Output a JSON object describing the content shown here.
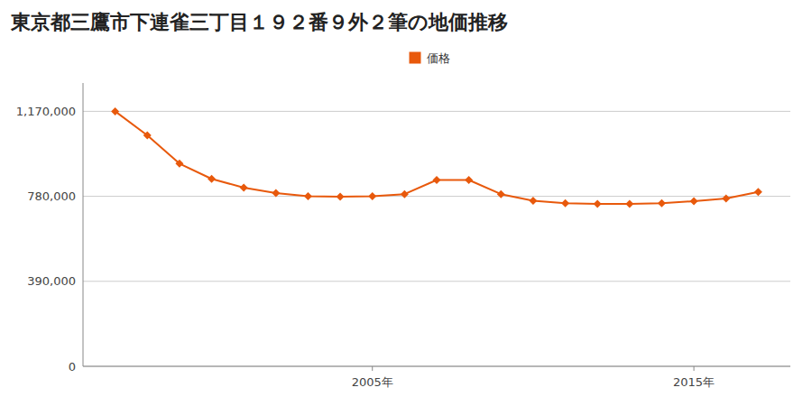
{
  "chart_data": {
    "type": "line",
    "title": "東京都三鷹市下連雀三丁目１９２番９外２筆の地価推移",
    "x": [
      1997,
      1998,
      1999,
      2000,
      2001,
      2002,
      2003,
      2004,
      2005,
      2006,
      2007,
      2008,
      2009,
      2010,
      2011,
      2012,
      2013,
      2014,
      2015,
      2016,
      2017
    ],
    "series": [
      {
        "name": "価格",
        "color": "#E8590C",
        "marker": "diamond",
        "values": [
          1170000,
          1060000,
          930000,
          860000,
          820000,
          795000,
          780000,
          778000,
          780000,
          790000,
          855000,
          855000,
          790000,
          760000,
          748000,
          745000,
          745000,
          748000,
          758000,
          770000,
          800000
        ]
      }
    ],
    "xlim": [
      1996,
      2018
    ],
    "xticks": [
      {
        "value": 2005,
        "label": "2005年"
      },
      {
        "value": 2015,
        "label": "2015年"
      }
    ],
    "ylim": [
      0,
      1300000
    ],
    "yticks": [
      0,
      {
        "value": 390000,
        "label": "390,000"
      },
      {
        "value": 780000,
        "label": "780,000"
      },
      {
        "value": 1170000,
        "label": "1,170,000"
      }
    ],
    "grid": true,
    "legend": "top"
  }
}
